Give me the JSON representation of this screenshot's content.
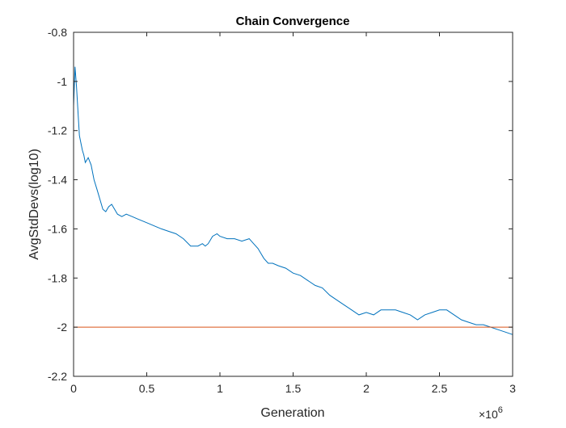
{
  "chart_data": {
    "type": "line",
    "title": "Chain Convergence",
    "xlabel": "Generation",
    "ylabel": "AvgStdDevs(log10)",
    "x_multiplier_label": "×10",
    "x_multiplier_exponent": "6",
    "xlim": [
      0,
      3000000
    ],
    "ylim": [
      -2.2,
      -0.8
    ],
    "xticks": [
      0,
      500000,
      1000000,
      1500000,
      2000000,
      2500000,
      3000000
    ],
    "xtick_labels": [
      "0",
      "0.5",
      "1",
      "1.5",
      "2",
      "2.5",
      "3"
    ],
    "yticks": [
      -2.2,
      -2,
      -1.8,
      -1.6,
      -1.4,
      -1.2,
      -1,
      -0.8
    ],
    "ytick_labels": [
      "-2.2",
      "-2",
      "-1.8",
      "-1.6",
      "-1.4",
      "-1.2",
      "-1",
      "-0.8"
    ],
    "grid": false,
    "box": true,
    "series": [
      {
        "color": "#0072BD",
        "x": [
          0,
          10000,
          20000,
          30000,
          40000,
          50000,
          60000,
          70000,
          80000,
          100000,
          120000,
          140000,
          160000,
          180000,
          200000,
          220000,
          240000,
          260000,
          280000,
          300000,
          330000,
          360000,
          400000,
          440000,
          480000,
          520000,
          560000,
          600000,
          650000,
          700000,
          750000,
          800000,
          850000,
          880000,
          900000,
          920000,
          950000,
          980000,
          1000000,
          1050000,
          1100000,
          1150000,
          1200000,
          1230000,
          1260000,
          1300000,
          1330000,
          1360000,
          1400000,
          1450000,
          1500000,
          1550000,
          1600000,
          1650000,
          1700000,
          1750000,
          1800000,
          1850000,
          1900000,
          1950000,
          2000000,
          2050000,
          2100000,
          2150000,
          2200000,
          2250000,
          2300000,
          2350000,
          2400000,
          2450000,
          2500000,
          2550000,
          2600000,
          2650000,
          2700000,
          2750000,
          2800000,
          2850000,
          2900000,
          2950000,
          3000000
        ],
        "values": [
          -1.1,
          -0.94,
          -1.02,
          -1.12,
          -1.22,
          -1.25,
          -1.28,
          -1.3,
          -1.33,
          -1.31,
          -1.34,
          -1.4,
          -1.44,
          -1.48,
          -1.52,
          -1.53,
          -1.51,
          -1.5,
          -1.52,
          -1.54,
          -1.55,
          -1.54,
          -1.55,
          -1.56,
          -1.57,
          -1.58,
          -1.59,
          -1.6,
          -1.61,
          -1.62,
          -1.64,
          -1.67,
          -1.67,
          -1.66,
          -1.67,
          -1.66,
          -1.63,
          -1.62,
          -1.63,
          -1.64,
          -1.64,
          -1.65,
          -1.64,
          -1.66,
          -1.68,
          -1.72,
          -1.74,
          -1.74,
          -1.75,
          -1.76,
          -1.78,
          -1.79,
          -1.81,
          -1.83,
          -1.84,
          -1.87,
          -1.89,
          -1.91,
          -1.93,
          -1.95,
          -1.94,
          -1.95,
          -1.93,
          -1.93,
          -1.93,
          -1.94,
          -1.95,
          -1.97,
          -1.95,
          -1.94,
          -1.93,
          -1.93,
          -1.95,
          -1.97,
          -1.98,
          -1.99,
          -1.99,
          -2.0,
          -2.01,
          -2.02,
          -2.03
        ]
      },
      {
        "color": "#D95319",
        "x": [
          0,
          3000000
        ],
        "values": [
          -2.0,
          -2.0
        ]
      }
    ]
  }
}
